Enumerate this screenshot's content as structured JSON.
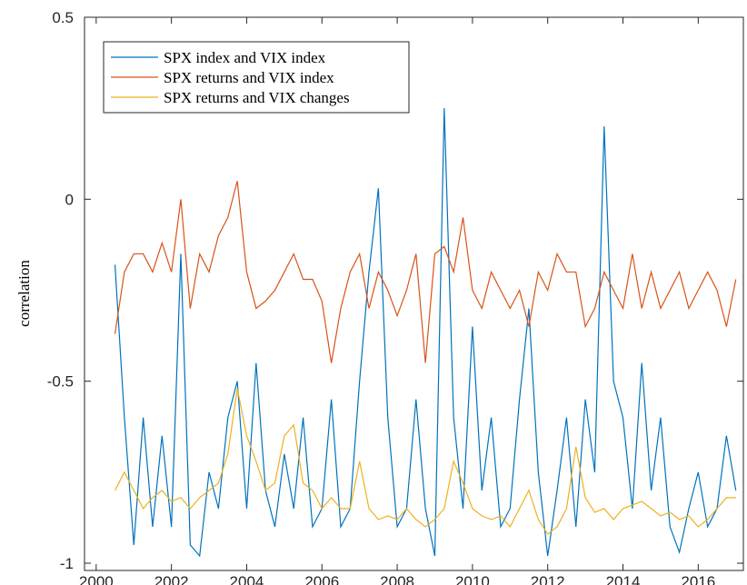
{
  "chart_data": {
    "type": "line",
    "ylabel": "correlation",
    "x": [
      2000.5,
      2000.75,
      2001,
      2001.25,
      2001.5,
      2001.75,
      2002,
      2002.25,
      2002.5,
      2002.75,
      2003,
      2003.25,
      2003.5,
      2003.75,
      2004,
      2004.25,
      2004.5,
      2004.75,
      2005,
      2005.25,
      2005.5,
      2005.75,
      2006,
      2006.25,
      2006.5,
      2006.75,
      2007,
      2007.25,
      2007.5,
      2007.75,
      2008,
      2008.25,
      2008.5,
      2008.75,
      2009,
      2009.25,
      2009.5,
      2009.75,
      2010,
      2010.25,
      2010.5,
      2010.75,
      2011,
      2011.25,
      2011.5,
      2011.75,
      2012,
      2012.25,
      2012.5,
      2012.75,
      2013,
      2013.25,
      2013.5,
      2013.75,
      2014,
      2014.25,
      2014.5,
      2014.75,
      2015,
      2015.25,
      2015.5,
      2015.75,
      2016,
      2016.25,
      2016.5,
      2016.75,
      2017
    ],
    "series": [
      {
        "name": "SPX index and VIX index",
        "color": "#0072BD",
        "values": [
          -0.18,
          -0.6,
          -0.95,
          -0.6,
          -0.9,
          -0.65,
          -0.9,
          -0.15,
          -0.95,
          -0.98,
          -0.75,
          -0.85,
          -0.6,
          -0.5,
          -0.85,
          -0.45,
          -0.8,
          -0.9,
          -0.7,
          -0.85,
          -0.6,
          -0.9,
          -0.85,
          -0.55,
          -0.9,
          -0.85,
          -0.5,
          -0.2,
          0.03,
          -0.6,
          -0.9,
          -0.85,
          -0.55,
          -0.85,
          -0.98,
          0.25,
          -0.6,
          -0.85,
          -0.35,
          -0.8,
          -0.6,
          -0.9,
          -0.85,
          -0.55,
          -0.3,
          -0.75,
          -0.98,
          -0.8,
          -0.6,
          -0.9,
          -0.55,
          -0.75,
          0.2,
          -0.5,
          -0.6,
          -0.85,
          -0.45,
          -0.8,
          -0.6,
          -0.9,
          -0.97,
          -0.85,
          -0.75,
          -0.9,
          -0.85,
          -0.65,
          -0.8
        ]
      },
      {
        "name": "SPX returns and VIX index",
        "color": "#D95319",
        "values": [
          -0.37,
          -0.2,
          -0.15,
          -0.15,
          -0.2,
          -0.12,
          -0.2,
          0.0,
          -0.3,
          -0.15,
          -0.2,
          -0.1,
          -0.05,
          0.05,
          -0.2,
          -0.3,
          -0.28,
          -0.25,
          -0.2,
          -0.15,
          -0.22,
          -0.22,
          -0.28,
          -0.45,
          -0.3,
          -0.2,
          -0.15,
          -0.3,
          -0.2,
          -0.25,
          -0.32,
          -0.25,
          -0.15,
          -0.45,
          -0.15,
          -0.13,
          -0.2,
          -0.05,
          -0.25,
          -0.3,
          -0.2,
          -0.25,
          -0.3,
          -0.25,
          -0.35,
          -0.2,
          -0.25,
          -0.15,
          -0.2,
          -0.2,
          -0.35,
          -0.3,
          -0.2,
          -0.25,
          -0.3,
          -0.15,
          -0.3,
          -0.2,
          -0.3,
          -0.25,
          -0.2,
          -0.3,
          -0.25,
          -0.2,
          -0.25,
          -0.35,
          -0.22
        ]
      },
      {
        "name": "SPX returns and VIX changes",
        "color": "#EDB120",
        "values": [
          -0.8,
          -0.75,
          -0.8,
          -0.85,
          -0.82,
          -0.8,
          -0.83,
          -0.82,
          -0.85,
          -0.82,
          -0.8,
          -0.78,
          -0.7,
          -0.52,
          -0.65,
          -0.72,
          -0.8,
          -0.78,
          -0.65,
          -0.62,
          -0.78,
          -0.8,
          -0.85,
          -0.82,
          -0.85,
          -0.85,
          -0.72,
          -0.85,
          -0.88,
          -0.87,
          -0.88,
          -0.85,
          -0.88,
          -0.9,
          -0.88,
          -0.85,
          -0.72,
          -0.78,
          -0.85,
          -0.87,
          -0.88,
          -0.87,
          -0.9,
          -0.85,
          -0.8,
          -0.88,
          -0.92,
          -0.9,
          -0.85,
          -0.68,
          -0.82,
          -0.86,
          -0.85,
          -0.88,
          -0.85,
          -0.84,
          -0.83,
          -0.85,
          -0.87,
          -0.86,
          -0.88,
          -0.87,
          -0.9,
          -0.88,
          -0.85,
          -0.82,
          -0.82
        ]
      }
    ],
    "xlim": [
      1999.69,
      2017.2
    ],
    "xticks": [
      2000,
      2002,
      2004,
      2006,
      2008,
      2010,
      2012,
      2014,
      2016
    ],
    "ylim": [
      -1.02,
      0.5
    ],
    "yticks": [
      0.5,
      0,
      -0.5,
      -1
    ],
    "legend": "upper left",
    "grid": false
  }
}
